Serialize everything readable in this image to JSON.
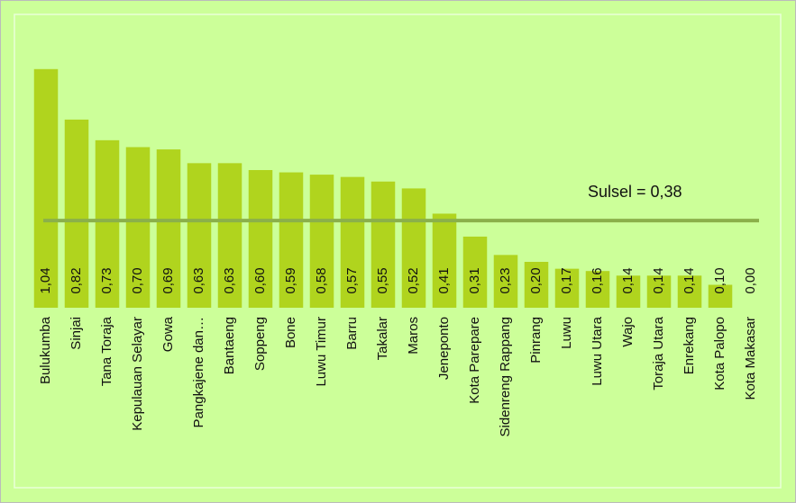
{
  "chart_data": {
    "type": "bar",
    "categories": [
      "Bulukumba",
      "Sinjai",
      "Tana Toraja",
      "Kepulauan Selayar",
      "Gowa",
      "Pangkajene dan…",
      "Bantaeng",
      "Soppeng",
      "Bone",
      "Luwu Timur",
      "Barru",
      "Takalar",
      "Maros",
      "Jeneponto",
      "Kota Parepare",
      "Sidenreng Rappang",
      "Pinrang",
      "Luwu",
      "Luwu Utara",
      "Wajo",
      "Toraja Utara",
      "Enrekang",
      "Kota Palopo",
      "Kota Makasar"
    ],
    "values": [
      1.04,
      0.82,
      0.73,
      0.7,
      0.69,
      0.63,
      0.63,
      0.6,
      0.59,
      0.58,
      0.57,
      0.55,
      0.52,
      0.41,
      0.31,
      0.23,
      0.2,
      0.17,
      0.16,
      0.14,
      0.14,
      0.14,
      0.1,
      0.0
    ],
    "value_labels": [
      "1,04",
      "0,82",
      "0,73",
      "0,70",
      "0,69",
      "0,63",
      "0,63",
      "0,60",
      "0,59",
      "0,58",
      "0,57",
      "0,55",
      "0,52",
      "0,41",
      "0,31",
      "0,23",
      "0,20",
      "0,17",
      "0,16",
      "0,14",
      "0,14",
      "0,14",
      "0,10",
      "0,00"
    ],
    "color": "#b0d41e",
    "ylim": [
      0,
      1.2
    ],
    "reference_line": {
      "value": 0.38,
      "label": "Sulsel = 0,38",
      "color": "#8bb04a"
    }
  }
}
